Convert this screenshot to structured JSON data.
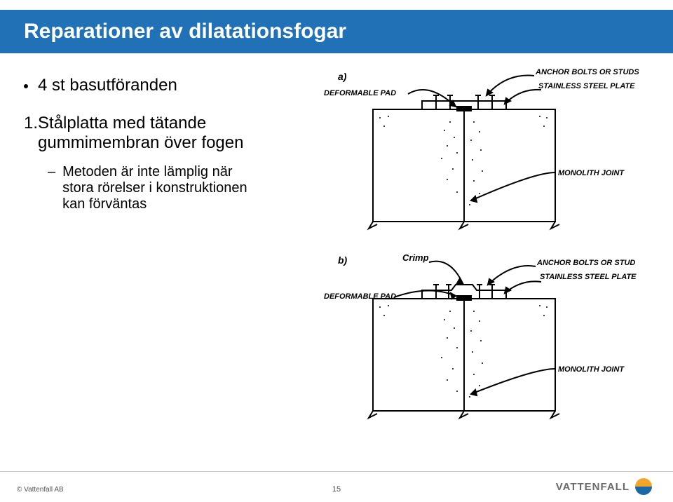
{
  "colors": {
    "title_bar_bg": "#2071b5",
    "title_text": "#ffffff",
    "body_text": "#000000",
    "footer_line": "#c9c9c9",
    "logo_text": "#6b6b6b",
    "logo_blue": "#1a68a6",
    "logo_orange": "#f2a52a"
  },
  "slide": {
    "title": "Reparationer av dilatationsfogar",
    "title_fontsize": 30,
    "bullet1": "4 st basutföranden",
    "bullet1_fontsize": 24,
    "num1": "1.",
    "item1_line1": "Stålplatta med tätande",
    "item1_line2": "gummimembran över fogen",
    "item1_fontsize": 24,
    "sub_dash": "–",
    "sub1_line1": "Metoden är inte lämplig när",
    "sub1_line2": "stora rörelser i konstruktionen",
    "sub1_line3": "kan förväntas",
    "sub1_fontsize": 20
  },
  "diagram": {
    "label_a": "a)",
    "label_b": "b)",
    "deformable_pad": "DEFORMABLE PAD",
    "anchor_bolts_a": "ANCHOR BOLTS OR STUDS",
    "stainless_plate_a": "STAINLESS STEEL PLATE",
    "monolith_joint": "MONOLITH JOINT",
    "crimp": "Crimp",
    "anchor_bolts_b": "ANCHOR BOLTS OR STUD",
    "stainless_plate_b": "STAINLESS STEEL PLATE",
    "deformable_pad_b": "DEFORMABLE PAD",
    "label_fontsize": 11
  },
  "footer": {
    "copyright": "© Vattenfall AB",
    "page_number": "15",
    "logo_text": "VATTENFALL"
  }
}
